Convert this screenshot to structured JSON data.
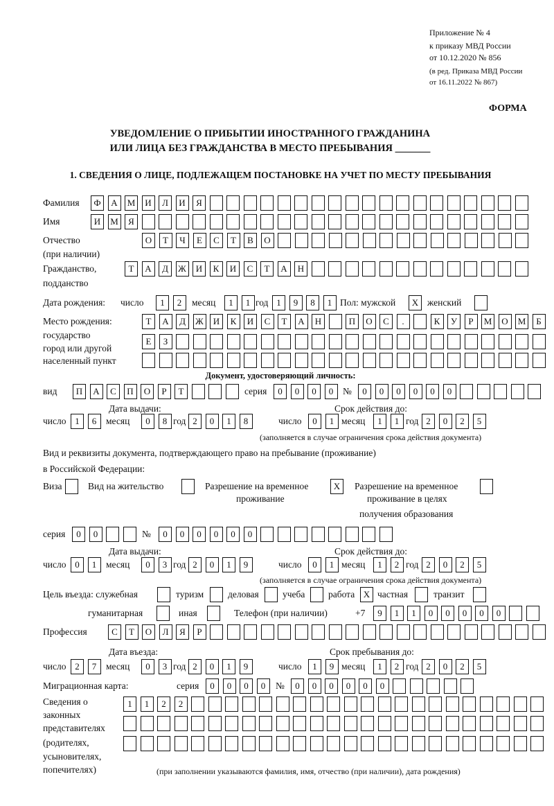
{
  "header": {
    "line1": "Приложение № 4",
    "line2": "к приказу МВД России",
    "line3": "от 10.12.2020 № 856",
    "line4": "(в ред. Приказа МВД России",
    "line5": "от 16.11.2022 № 867)"
  },
  "form_label": "ФОРМА",
  "title_line1": "УВЕДОМЛЕНИЕ О ПРИБЫТИИ ИНОСТРАННОГО ГРАЖДАНИНА",
  "title_line2": "ИЛИ ЛИЦА БЕЗ ГРАЖДАНСТВА В МЕСТО ПРЕБЫВАНИЯ _______",
  "section1_title": "1. СВЕДЕНИЯ О ЛИЦЕ, ПОДЛЕЖАЩЕМ ПОСТАНОВКЕ НА УЧЕТ ПО МЕСТУ ПРЕБЫВАНИЯ",
  "labels": {
    "surname": "Фамилия",
    "name": "Имя",
    "patronymic": "Отчество",
    "patronymic_note": "(при наличии)",
    "citizenship1": "Гражданство,",
    "citizenship2": "подданство",
    "birth_date": "Дата рождения:",
    "day": "число",
    "month": "месяц",
    "year": "год",
    "sex": "Пол: мужской",
    "female": "женский",
    "birth_place1": "Место рождения:",
    "birth_place2": "государство",
    "birth_place3": "город или другой",
    "birth_place4": "населенный пункт",
    "id_doc": "Документ, удостоверяющий личность:",
    "kind": "вид",
    "series": "серия",
    "number": "№",
    "issue_date": "Дата выдачи:",
    "valid_until": "Срок действия до:",
    "validity_note": "(заполняется в случае ограничения срока действия документа)",
    "stay_doc1": "Вид и реквизиты документа, подтверждающего право на пребывание (проживание)",
    "stay_doc2": "в Российской Федерации:",
    "visa": "Виза",
    "residence_permit": "Вид на жительство",
    "temp_residence1": "Разрешение на временное",
    "temp_residence2": "проживание",
    "temp_edu1": "Разрешение на временное",
    "temp_edu2": "проживание в целях",
    "temp_edu3": "получения образования",
    "purpose": "Цель въезда: служебная",
    "tourism": "туризм",
    "business": "деловая",
    "study": "учеба",
    "work": "работа",
    "private": "частная",
    "transit": "транзит",
    "humanitarian": "гуманитарная",
    "other": "иная",
    "phone": "Телефон (при наличии)",
    "phone_prefix": "+7",
    "profession": "Профессия",
    "entry_date": "Дата въезда:",
    "stay_until": "Срок пребывания до:",
    "migration_card": "Миграционная карта:",
    "reps1": "Сведения о",
    "reps2": "законных",
    "reps3": "представителях",
    "reps4": "(родителях,",
    "reps5": "усыновителях,",
    "reps6": "попечителях)",
    "reps_note": "(при заполнении указываются фамилия, имя, отчество (при наличии), дата рождения)"
  },
  "fields": {
    "surname": [
      "Ф",
      "А",
      "М",
      "И",
      "Л",
      "И",
      "Я",
      "",
      "",
      "",
      "",
      "",
      "",
      "",
      "",
      "",
      "",
      "",
      "",
      "",
      "",
      "",
      "",
      "",
      "",
      ""
    ],
    "name": [
      "И",
      "М",
      "Я",
      "",
      "",
      "",
      "",
      "",
      "",
      "",
      "",
      "",
      "",
      "",
      "",
      "",
      "",
      "",
      "",
      "",
      "",
      "",
      "",
      "",
      "",
      ""
    ],
    "patronymic": [
      "О",
      "Т",
      "Ч",
      "Е",
      "С",
      "Т",
      "В",
      "О",
      "",
      "",
      "",
      "",
      "",
      "",
      "",
      "",
      "",
      "",
      "",
      "",
      "",
      "",
      ""
    ],
    "citizenship": [
      "Т",
      "А",
      "Д",
      "Ж",
      "И",
      "К",
      "И",
      "С",
      "Т",
      "А",
      "Н",
      "",
      "",
      "",
      "",
      "",
      "",
      "",
      "",
      "",
      "",
      "",
      "",
      ""
    ],
    "birth_day": [
      "1",
      "2"
    ],
    "birth_month": [
      "1",
      "1"
    ],
    "birth_year": [
      "1",
      "9",
      "8",
      "1"
    ],
    "sex_male": [
      "X"
    ],
    "sex_female": [
      ""
    ],
    "birth_place_row1": [
      "Т",
      "А",
      "Д",
      "Ж",
      "И",
      "К",
      "И",
      "С",
      "Т",
      "А",
      "Н",
      "",
      "П",
      "О",
      "С",
      ".",
      "",
      "К",
      "У",
      "Р",
      "М",
      "О",
      "М",
      "Б"
    ],
    "birth_place_row2": [
      "Е",
      "З",
      "",
      "",
      "",
      "",
      "",
      "",
      "",
      "",
      "",
      "",
      "",
      "",
      "",
      "",
      "",
      "",
      "",
      "",
      "",
      "",
      "",
      ""
    ],
    "birth_place_row3": [
      "",
      "",
      "",
      "",
      "",
      "",
      "",
      "",
      "",
      "",
      "",
      "",
      "",
      "",
      "",
      "",
      "",
      "",
      "",
      "",
      "",
      "",
      "",
      ""
    ],
    "id_kind": [
      "П",
      "А",
      "С",
      "П",
      "О",
      "Р",
      "Т",
      "",
      "",
      ""
    ],
    "id_series": [
      "0",
      "0",
      "0",
      "0"
    ],
    "id_number": [
      "0",
      "0",
      "0",
      "0",
      "0",
      "0",
      "",
      "",
      "",
      "",
      ""
    ],
    "id_issue_day": [
      "1",
      "6"
    ],
    "id_issue_month": [
      "0",
      "8"
    ],
    "id_issue_year": [
      "2",
      "0",
      "1",
      "8"
    ],
    "id_valid_day": [
      "0",
      "1"
    ],
    "id_valid_month": [
      "1",
      "1"
    ],
    "id_valid_year": [
      "2",
      "0",
      "2",
      "5"
    ],
    "visa": [
      ""
    ],
    "residence_permit": [
      ""
    ],
    "temp_residence": [
      "X"
    ],
    "temp_edu": [
      ""
    ],
    "stay_series": [
      "0",
      "0",
      "",
      ""
    ],
    "stay_number": [
      "0",
      "0",
      "0",
      "0",
      "0",
      "0",
      "",
      "",
      "",
      "",
      "",
      "",
      "",
      ""
    ],
    "stay_issue_day": [
      "0",
      "1"
    ],
    "stay_issue_month": [
      "0",
      "3"
    ],
    "stay_issue_year": [
      "2",
      "0",
      "1",
      "9"
    ],
    "stay_valid_day": [
      "0",
      "1"
    ],
    "stay_valid_month": [
      "1",
      "2"
    ],
    "stay_valid_year": [
      "2",
      "0",
      "2",
      "5"
    ],
    "purpose_official": [
      ""
    ],
    "purpose_tourism": [
      ""
    ],
    "purpose_business": [
      ""
    ],
    "purpose_study": [
      ""
    ],
    "purpose_work": [
      "X"
    ],
    "purpose_private": [
      ""
    ],
    "purpose_transit": [
      ""
    ],
    "purpose_humanitarian": [
      ""
    ],
    "purpose_other": [
      ""
    ],
    "phone": [
      "9",
      "1",
      "1",
      "0",
      "0",
      "0",
      "0",
      "0",
      "",
      ""
    ],
    "profession": [
      "С",
      "Т",
      "О",
      "Л",
      "Я",
      "Р",
      "",
      "",
      "",
      "",
      "",
      "",
      "",
      "",
      "",
      "",
      "",
      "",
      "",
      "",
      "",
      "",
      "",
      "",
      "",
      ""
    ],
    "entry_day": [
      "2",
      "7"
    ],
    "entry_month": [
      "0",
      "3"
    ],
    "entry_year": [
      "2",
      "0",
      "1",
      "9"
    ],
    "stay_until_day": [
      "1",
      "9"
    ],
    "stay_until_month": [
      "1",
      "2"
    ],
    "stay_until_year": [
      "2",
      "0",
      "2",
      "5"
    ],
    "mig_series": [
      "0",
      "0",
      "0",
      "0"
    ],
    "mig_number": [
      "0",
      "0",
      "0",
      "0",
      "0",
      "0",
      "",
      "",
      "",
      "",
      ""
    ],
    "reps_row1": [
      "1",
      "1",
      "2",
      "2",
      "",
      "",
      "",
      "",
      "",
      "",
      "",
      "",
      "",
      "",
      "",
      "",
      "",
      "",
      "",
      "",
      "",
      "",
      "",
      "",
      ""
    ],
    "reps_row2": [
      "",
      "",
      "",
      "",
      "",
      "",
      "",
      "",
      "",
      "",
      "",
      "",
      "",
      "",
      "",
      "",
      "",
      "",
      "",
      "",
      "",
      "",
      "",
      "",
      ""
    ],
    "reps_row3": [
      "",
      "",
      "",
      "",
      "",
      "",
      "",
      "",
      "",
      "",
      "",
      "",
      "",
      "",
      "",
      "",
      "",
      "",
      "",
      "",
      "",
      "",
      "",
      "",
      ""
    ]
  }
}
